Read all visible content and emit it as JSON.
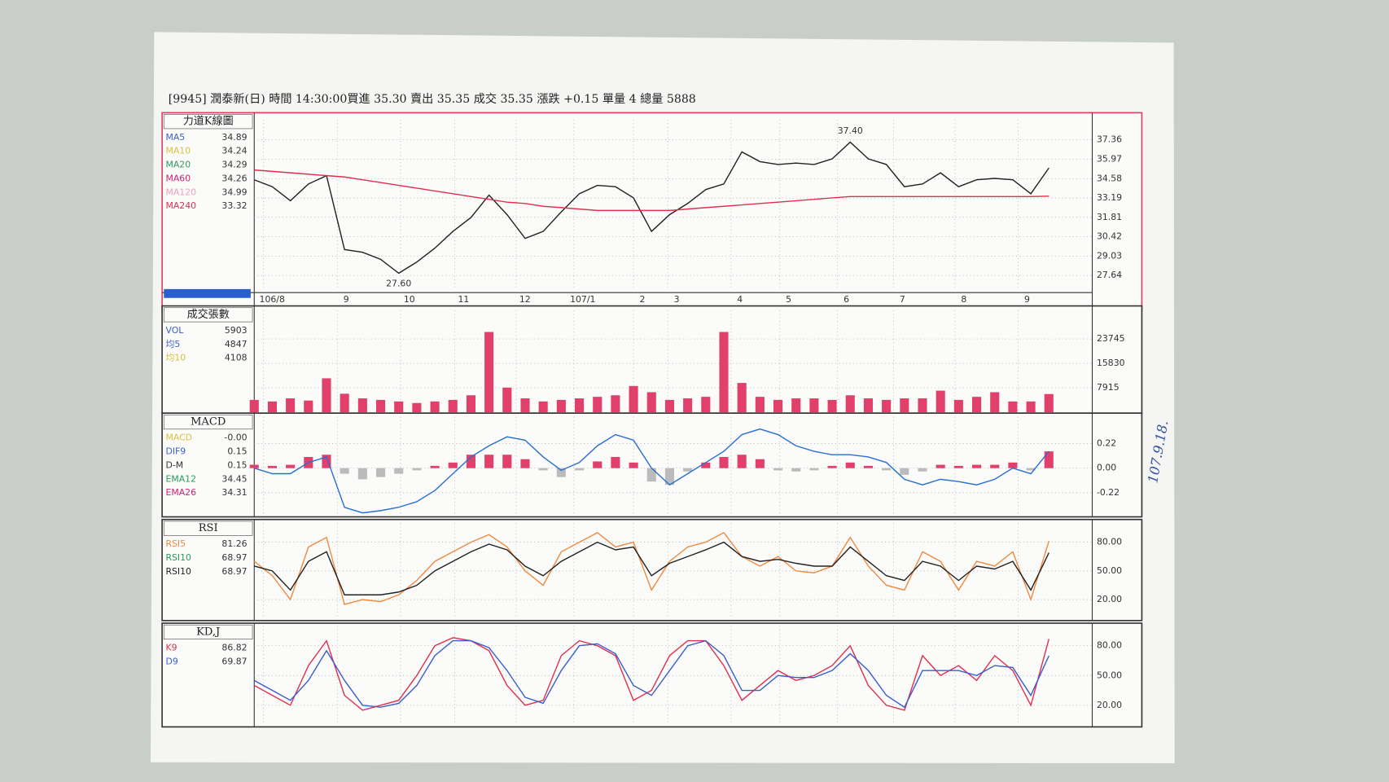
{
  "header": {
    "title": "[9945] 潤泰新(日) 時間 14:30:00買進 35.30  賣出 35.35  成交 35.35  漲跌 +0.15  單量 4     總量 5888",
    "note": "107.9.18."
  },
  "chart_data": [
    {
      "type": "line",
      "title": "力道K線圖",
      "legend": [
        {
          "name": "MA5",
          "value": 34.89,
          "color": "#3a5fcd"
        },
        {
          "name": "MA10",
          "value": 34.24,
          "color": "#d8c040"
        },
        {
          "name": "MA20",
          "value": 34.29,
          "color": "#2a9a5a"
        },
        {
          "name": "MA60",
          "value": 34.26,
          "color": "#d02070"
        },
        {
          "name": "MA120",
          "value": 34.99,
          "color": "#f0a0c0"
        },
        {
          "name": "MA240",
          "value": 33.32,
          "color": "#e03050"
        }
      ],
      "xlim": [
        0,
        46.4
      ],
      "xticks": [
        {
          "value": 0.5,
          "label": "106/8"
        },
        {
          "value": 4.6,
          "label": "9"
        },
        {
          "value": 8.1,
          "label": "10"
        },
        {
          "value": 11.1,
          "label": "11"
        },
        {
          "value": 14.5,
          "label": "12"
        },
        {
          "value": 17.7,
          "label": "107/1"
        },
        {
          "value": 21,
          "label": "2"
        },
        {
          "value": 22.9,
          "label": "3"
        },
        {
          "value": 26.4,
          "label": "4"
        },
        {
          "value": 29.1,
          "label": "5"
        },
        {
          "value": 32.3,
          "label": "6"
        },
        {
          "value": 35.4,
          "label": "7"
        },
        {
          "value": 38.8,
          "label": "8"
        },
        {
          "value": 42.3,
          "label": "9"
        }
      ],
      "ylim": [
        26.6,
        38.8
      ],
      "yticks": [
        {
          "value": 27.64,
          "label": "27.64"
        },
        {
          "value": 29.03,
          "label": "29.03"
        },
        30.42,
        31.81,
        33.19,
        34.58,
        35.97,
        37.36
      ],
      "annotations": [
        {
          "label": "37.40",
          "value": 37.4,
          "x": 33
        },
        {
          "label": "27.60",
          "value": 27.6,
          "x": 8
        }
      ],
      "series": [
        {
          "style": "line",
          "color": "#222222",
          "values": [
            34.5,
            34.0,
            33.0,
            34.2,
            34.8,
            29.5,
            29.3,
            28.8,
            27.8,
            28.6,
            29.6,
            30.8,
            31.8,
            33.4,
            32.0,
            30.3,
            30.8,
            32.2,
            33.5,
            34.1,
            34.0,
            33.2,
            30.8,
            32.0,
            32.8,
            33.8,
            34.2,
            36.5,
            35.8,
            35.6,
            35.7,
            35.6,
            36.0,
            37.2,
            36.0,
            35.6,
            34.0,
            34.2,
            35.0,
            34.0,
            34.5,
            34.6,
            34.5,
            33.5,
            35.35
          ]
        },
        {
          "style": "line",
          "color": "#e03050",
          "values": [
            35.2,
            35.1,
            35.0,
            34.9,
            34.8,
            34.7,
            34.5,
            34.3,
            34.1,
            33.9,
            33.7,
            33.5,
            33.3,
            33.1,
            32.9,
            32.8,
            32.6,
            32.5,
            32.4,
            32.3,
            32.3,
            32.3,
            32.3,
            32.3,
            32.4,
            32.5,
            32.6,
            32.7,
            32.8,
            32.9,
            33.0,
            33.1,
            33.2,
            33.3,
            33.3,
            33.3,
            33.3,
            33.3,
            33.3,
            33.3,
            33.3,
            33.3,
            33.3,
            33.3,
            33.32
          ]
        }
      ]
    },
    {
      "type": "bar",
      "title": "成交張數",
      "legend": [
        {
          "name": "VOL",
          "value": 5903,
          "color": "#3a5fcd"
        },
        {
          "name": "均5",
          "value": 4847,
          "color": "#3a5fcd"
        },
        {
          "name": "均10",
          "value": 4108,
          "color": "#d8c040"
        }
      ],
      "xlim": [
        0,
        46.4
      ],
      "ylim": [
        0,
        33000
      ],
      "yticks": [
        7915,
        15830,
        23745
      ],
      "series": [
        {
          "style": "bar",
          "color": "#e0406a",
          "values": [
            4000,
            3500,
            4500,
            3800,
            11000,
            6000,
            4500,
            4000,
            3500,
            3000,
            3500,
            4000,
            5500,
            26000,
            8000,
            4500,
            3500,
            4000,
            4500,
            5000,
            5500,
            8500,
            6500,
            4000,
            4500,
            5000,
            26000,
            9500,
            5000,
            4000,
            4500,
            4500,
            4000,
            5500,
            4500,
            4000,
            4500,
            4500,
            7000,
            4000,
            5000,
            6500,
            3500,
            3500,
            5903
          ]
        }
      ]
    },
    {
      "type": "line",
      "title": "MACD",
      "legend": [
        {
          "name": "MACD",
          "value": -0.0,
          "label": "-0.00",
          "color": "#d8c040"
        },
        {
          "name": "DIF9",
          "value": 0.15,
          "color": "#3a5fcd"
        },
        {
          "name": "D-M",
          "value": 0.15,
          "color": "#333333"
        },
        {
          "name": "EMA12",
          "value": 34.45,
          "color": "#2a9a5a"
        },
        {
          "name": "EMA26",
          "value": 34.31,
          "color": "#d02070"
        }
      ],
      "xlim": [
        0,
        46.4
      ],
      "ylim": [
        -0.42,
        0.46
      ],
      "yticks": [
        {
          "value": -0.22,
          "label": "-0.22"
        },
        {
          "value": 0,
          "label": "0.00"
        },
        0.22
      ],
      "series": [
        {
          "style": "bar",
          "color": "#e0406a",
          "values": [
            0.03,
            0.02,
            0.03,
            0.1,
            0.12,
            -0.05,
            -0.1,
            -0.08,
            -0.05,
            -0.02,
            0.02,
            0.05,
            0.12,
            0.12,
            0.12,
            0.08,
            -0.02,
            -0.08,
            -0.02,
            0.06,
            0.1,
            0.05,
            -0.12,
            -0.15,
            -0.03,
            0.05,
            0.1,
            0.12,
            0.08,
            -0.02,
            -0.03,
            -0.02,
            0.02,
            0.05,
            0.02,
            -0.02,
            -0.06,
            -0.03,
            0.03,
            0.02,
            0.03,
            0.03,
            0.05,
            -0.02,
            0.15
          ]
        },
        {
          "style": "line",
          "color": "#2a6fd0",
          "values": [
            0.0,
            -0.05,
            -0.05,
            0.05,
            0.1,
            -0.35,
            -0.4,
            -0.38,
            -0.35,
            -0.3,
            -0.2,
            -0.05,
            0.1,
            0.2,
            0.28,
            0.25,
            0.1,
            -0.02,
            0.05,
            0.2,
            0.3,
            0.25,
            0.0,
            -0.15,
            -0.05,
            0.05,
            0.15,
            0.3,
            0.35,
            0.3,
            0.2,
            0.15,
            0.12,
            0.12,
            0.1,
            0.05,
            -0.1,
            -0.15,
            -0.1,
            -0.12,
            -0.15,
            -0.1,
            0.0,
            -0.05,
            0.15
          ]
        }
      ]
    },
    {
      "type": "line",
      "title": "RSI",
      "legend": [
        {
          "name": "RSI5",
          "value": 81.26,
          "color": "#f08a40"
        },
        {
          "name": "RSI10",
          "value": 68.97,
          "color": "#2a9a5a"
        },
        {
          "name": "RSI10",
          "value": 68.97,
          "color": "#222222"
        }
      ],
      "xlim": [
        0,
        46.4
      ],
      "ylim": [
        0,
        100
      ],
      "yticks": [
        {
          "value": 20,
          "label": "20.00"
        },
        {
          "value": 50,
          "label": "50.00"
        },
        {
          "value": 80,
          "label": "80.00"
        }
      ],
      "series": [
        {
          "style": "line",
          "color": "#f08a40",
          "values": [
            60,
            45,
            20,
            75,
            85,
            15,
            20,
            18,
            25,
            40,
            60,
            70,
            80,
            88,
            75,
            50,
            35,
            70,
            80,
            90,
            75,
            80,
            30,
            60,
            75,
            80,
            90,
            65,
            55,
            65,
            50,
            48,
            55,
            85,
            55,
            35,
            30,
            70,
            60,
            30,
            60,
            55,
            70,
            20,
            81.26
          ]
        },
        {
          "style": "line",
          "color": "#222222",
          "values": [
            55,
            50,
            30,
            60,
            70,
            25,
            25,
            25,
            28,
            35,
            50,
            60,
            70,
            78,
            72,
            55,
            45,
            60,
            70,
            80,
            72,
            75,
            45,
            58,
            65,
            72,
            80,
            65,
            60,
            62,
            58,
            55,
            55,
            75,
            60,
            45,
            40,
            60,
            55,
            40,
            55,
            52,
            60,
            30,
            68.97
          ]
        }
      ]
    },
    {
      "type": "line",
      "title": "KD,J",
      "legend": [
        {
          "name": "K9",
          "value": 86.82,
          "color": "#e03050"
        },
        {
          "name": "D9",
          "value": 69.87,
          "color": "#3a5fcd"
        }
      ],
      "xlim": [
        0,
        46.4
      ],
      "ylim": [
        0,
        100
      ],
      "yticks": [
        {
          "value": 20,
          "label": "20.00"
        },
        {
          "value": 50,
          "label": "50.00"
        },
        {
          "value": 80,
          "label": "80.00"
        }
      ],
      "series": [
        {
          "style": "line",
          "color": "#e03050",
          "values": [
            40,
            30,
            20,
            60,
            85,
            30,
            15,
            20,
            25,
            50,
            80,
            88,
            85,
            75,
            40,
            20,
            25,
            70,
            85,
            80,
            70,
            25,
            35,
            70,
            85,
            85,
            60,
            25,
            40,
            55,
            45,
            50,
            60,
            80,
            40,
            20,
            15,
            70,
            50,
            60,
            45,
            70,
            55,
            20,
            86.82
          ]
        },
        {
          "style": "line",
          "color": "#3a5fcd",
          "values": [
            45,
            35,
            25,
            45,
            75,
            45,
            20,
            18,
            22,
            40,
            70,
            85,
            85,
            78,
            55,
            28,
            22,
            55,
            80,
            82,
            72,
            40,
            30,
            55,
            80,
            85,
            70,
            35,
            35,
            50,
            48,
            48,
            55,
            72,
            55,
            30,
            18,
            55,
            55,
            55,
            50,
            60,
            58,
            30,
            69.87
          ]
        }
      ]
    }
  ]
}
